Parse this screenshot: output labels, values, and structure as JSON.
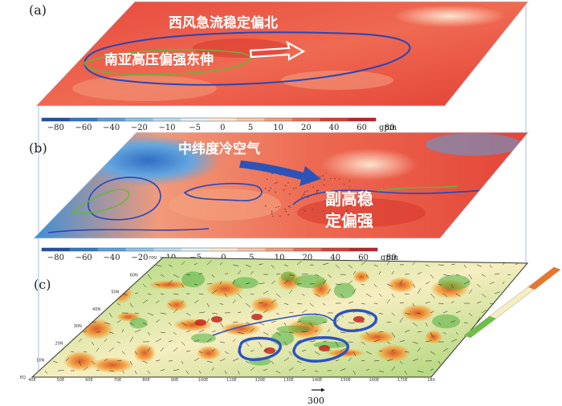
{
  "panels": [
    {
      "label": "(a)"
    },
    {
      "label": "(b)"
    },
    {
      "label": "(c)"
    }
  ],
  "annotations": {
    "a_top": "西风急流稳定偏北",
    "a_left": "南亚高压偏强东伸",
    "b_top": "中纬度冷空气",
    "b_right_line1": "副高稳",
    "b_right_line2": "定偏强"
  },
  "colorbar": {
    "ticks": [
      "−80",
      "−60",
      "−40",
      "−20",
      "−10",
      "−5",
      "0",
      "5",
      "10",
      "20",
      "40",
      "60",
      "80"
    ],
    "unit": "gpm",
    "colors": [
      "#1f4fa8",
      "#2f78c8",
      "#5aa0dc",
      "#8cc3ea",
      "#b9dcf2",
      "#e4f1f8",
      "#fde6d2",
      "#fbc6a6",
      "#f59c78",
      "#ec6a50",
      "#e0392f",
      "#c41e25"
    ]
  },
  "panel_c_axes": {
    "lon_ticks": [
      "40E",
      "50E",
      "60E",
      "70E",
      "80E",
      "90E",
      "100E",
      "110E",
      "120E",
      "130E",
      "140E",
      "150E",
      "160E",
      "170E",
      "180"
    ],
    "lat_ticks": [
      "EQ",
      "10N",
      "20N",
      "30N",
      "40N",
      "50N",
      "60N",
      "70N"
    ]
  },
  "vector_scale": {
    "label": "300"
  },
  "colors": {
    "contour_blue": "#2746b8",
    "contour_green": "#5fb83a",
    "wind_vector": "#1a1a1a"
  }
}
